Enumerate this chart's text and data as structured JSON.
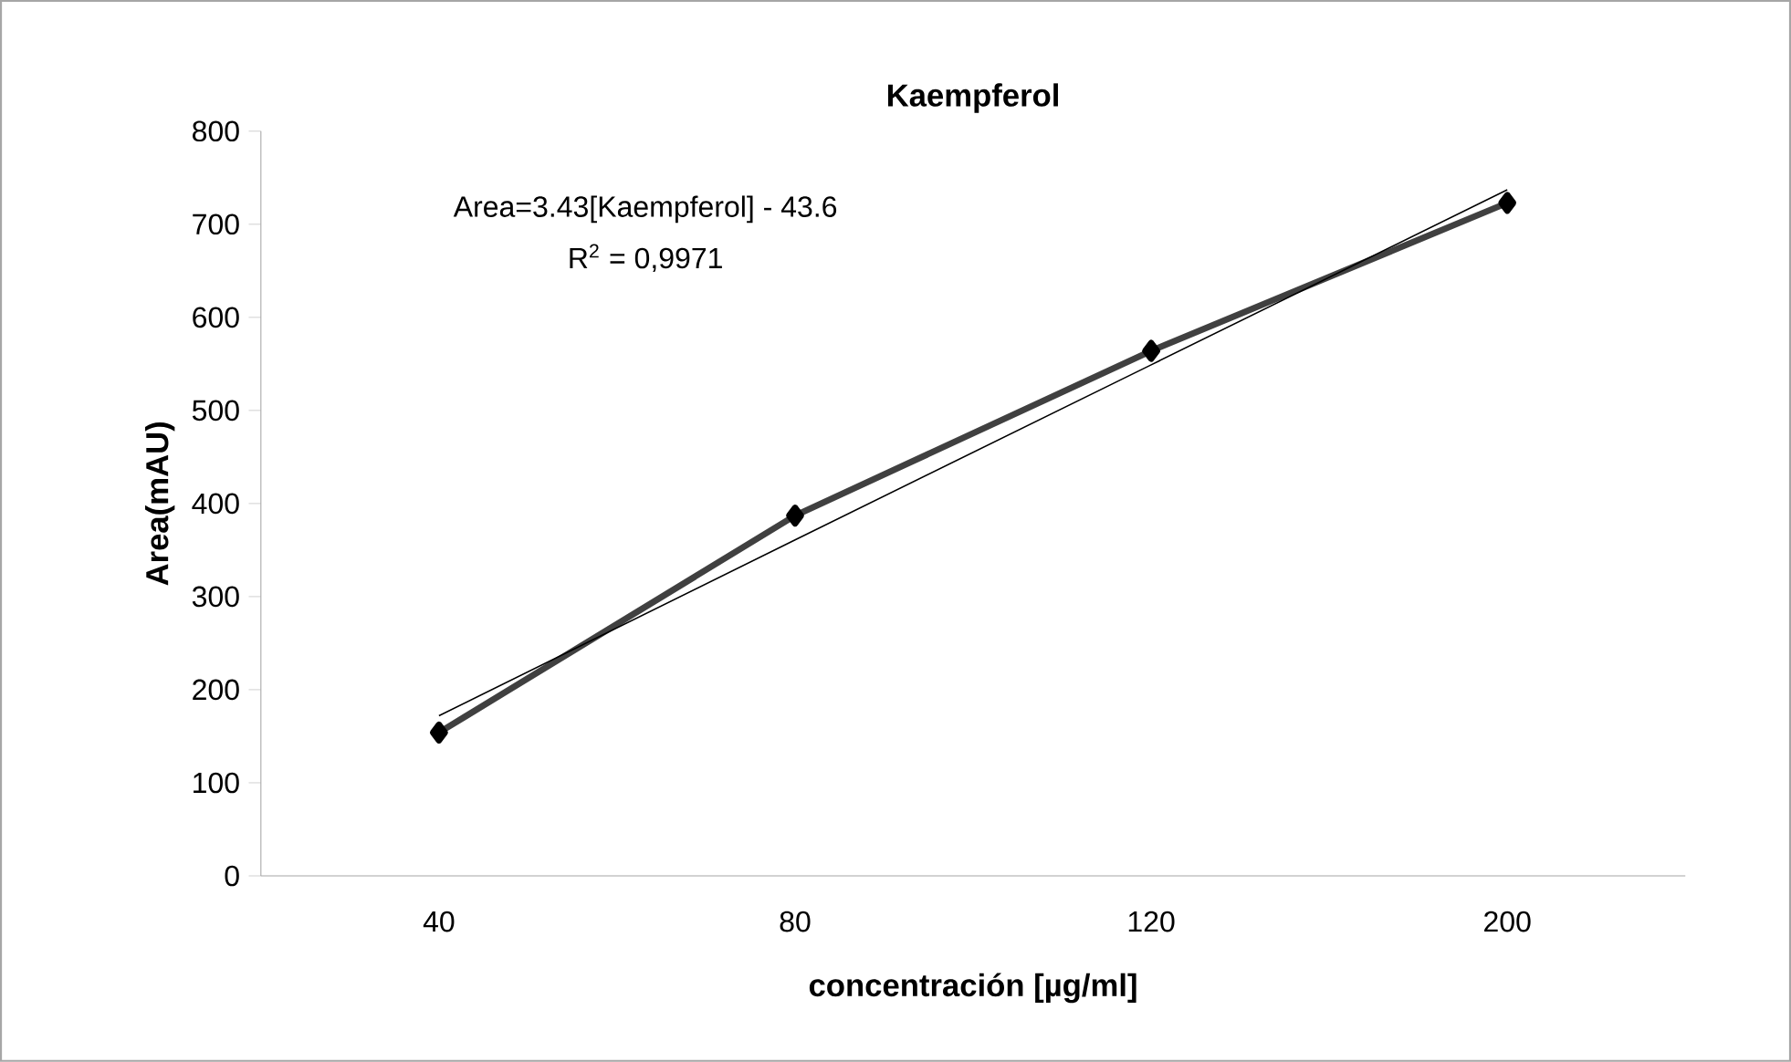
{
  "chart_data": {
    "type": "line",
    "title": "Kaempferol",
    "xlabel": "concentración [µg/ml]",
    "ylabel": "Area(mAU)",
    "categories": [
      "40",
      "80",
      "120",
      "200"
    ],
    "series": [
      {
        "color": "#404040",
        "values": [
          154,
          387,
          564,
          723
        ],
        "marker": "diamond"
      },
      {
        "color": "#000000",
        "values": [
          172,
          361,
          549,
          737
        ],
        "marker": "none"
      }
    ],
    "ylim": [
      0,
      800
    ],
    "yticks": [
      0,
      100,
      200,
      300,
      400,
      500,
      600,
      700,
      800
    ],
    "annotations": [
      "Area=3.43[Kaempferol] - 43.6",
      "R$^{2}$ = 0,9971"
    ],
    "grid": false
  }
}
